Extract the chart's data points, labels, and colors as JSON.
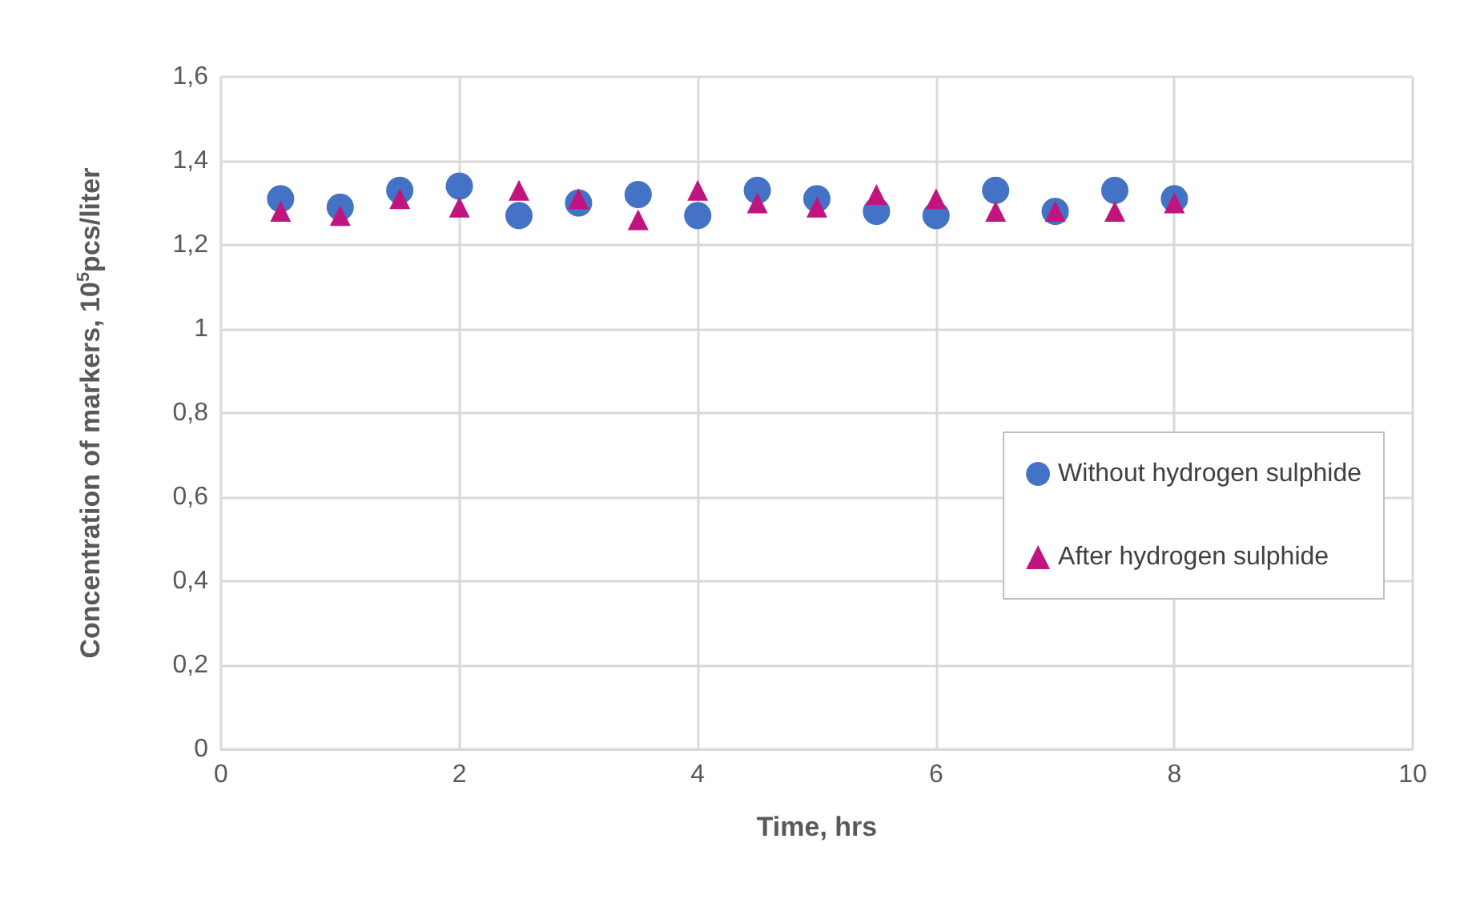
{
  "chart_data": {
    "type": "scatter",
    "xlabel": "Time, hrs",
    "ylabel": "Concentration of markers, 10$^{5}$pcs/liter",
    "x": [
      0.5,
      1,
      1.5,
      2,
      2.5,
      3,
      3.5,
      4,
      4.5,
      5,
      5.5,
      6,
      6.5,
      7,
      7.5,
      8
    ],
    "series": [
      {
        "name": "Without hydrogen sulphide",
        "color": "#4472c4",
        "marker": "circle",
        "values": [
          1.31,
          1.29,
          1.33,
          1.34,
          1.27,
          1.3,
          1.32,
          1.27,
          1.33,
          1.31,
          1.28,
          1.27,
          1.33,
          1.28,
          1.33,
          1.31
        ]
      },
      {
        "name": "After hydrogen sulphide",
        "color": "#c0157f",
        "marker": "triangle",
        "values": [
          1.28,
          1.27,
          1.31,
          1.29,
          1.33,
          1.31,
          1.26,
          1.33,
          1.3,
          1.29,
          1.32,
          1.31,
          1.28,
          1.28,
          1.28,
          1.3
        ]
      }
    ],
    "xlim": [
      0,
      10
    ],
    "xticks": [
      0,
      2,
      4,
      6,
      8,
      10
    ],
    "ylim": [
      0,
      1.6
    ],
    "yticks": [
      0,
      {
        "value": 0.2,
        "label": "0,2"
      },
      {
        "value": 0.4,
        "label": "0,4"
      },
      {
        "value": 0.6,
        "label": "0,6"
      },
      {
        "value": 0.8,
        "label": "0,8"
      },
      1,
      {
        "value": 1.2,
        "label": "1,2"
      },
      {
        "value": 1.4,
        "label": "1,4"
      },
      {
        "value": 1.6,
        "label": "1,6"
      }
    ],
    "grid": true,
    "legend": "right"
  }
}
